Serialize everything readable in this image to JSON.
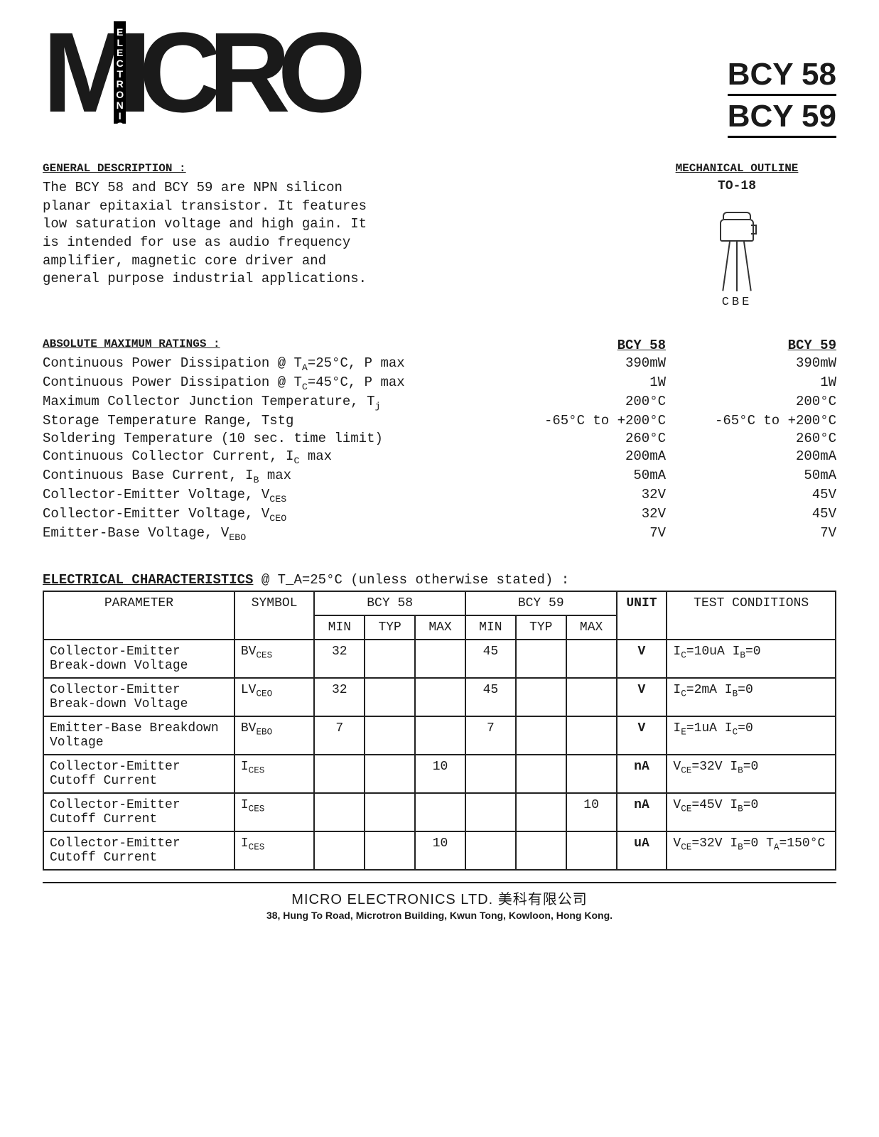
{
  "header": {
    "logo_main": "MICRO",
    "logo_sub": "ELECTRONICS",
    "part1": "BCY 58",
    "part2": "BCY 59"
  },
  "general": {
    "title": "GENERAL DESCRIPTION :",
    "text": "The BCY 58 and BCY 59 are NPN silicon planar epitaxial transistor. It features low saturation voltage and high gain.  It is intended for use as audio frequency amplifier, magnetic core driver and general purpose industrial applications."
  },
  "mechanical": {
    "title": "MECHANICAL OUTLINE",
    "package": "TO-18",
    "pins": "CBE"
  },
  "ratings": {
    "title": "ABSOLUTE MAXIMUM RATINGS   :",
    "col1": "BCY 58",
    "col2": "BCY 59",
    "rows": [
      {
        "label": "Continuous Power Dissipation @  T_A=25°C,  P max",
        "v1": "390mW",
        "v2": "390mW"
      },
      {
        "label": "Continuous Power Dissipation @  T_C=45°C,  P max",
        "v1": "1W",
        "v2": "1W"
      },
      {
        "label": "Maximum Collector Junction Temperature,  T_j",
        "v1": "200°C",
        "v2": "200°C"
      },
      {
        "label": "Storage Temperature Range,   Tstg",
        "v1": "-65°C to +200°C",
        "v2": "-65°C to +200°C"
      },
      {
        "label": "Soldering Temperature (10 sec. time limit)",
        "v1": "260°C",
        "v2": "260°C"
      },
      {
        "label": "Continuous Collector Current,  I_C  max",
        "v1": "200mA",
        "v2": "200mA"
      },
      {
        "label": "Continuous Base Current,  I_B  max",
        "v1": "50mA",
        "v2": "50mA"
      },
      {
        "label": "Collector-Emitter Voltage,  V_CES",
        "v1": "32V",
        "v2": "45V"
      },
      {
        "label": "Collector-Emitter Voltage,  V_CEO",
        "v1": "32V",
        "v2": "45V"
      },
      {
        "label": "Emitter-Base Voltage,  V_EBO",
        "v1": "7V",
        "v2": "7V"
      }
    ]
  },
  "electrical": {
    "title_u": "ELECTRICAL CHARACTERISTICS",
    "title_rest": "   @  T_A=25°C        (unless otherwise stated)   :",
    "headers": {
      "param": "PARAMETER",
      "symbol": "SYMBOL",
      "group1": "BCY 58",
      "group2": "BCY 59",
      "min": "MIN",
      "typ": "TYP",
      "max": "MAX",
      "unit": "UNIT",
      "cond": "TEST CONDITIONS"
    },
    "rows": [
      {
        "param": "Collector-Emitter Break-down Voltage",
        "sym": "BV_CES",
        "min1": "32",
        "typ1": "",
        "max1": "",
        "min2": "45",
        "typ2": "",
        "max2": "",
        "unit": "V",
        "cond": "I_C=10uA  I_B=0"
      },
      {
        "param": "Collector-Emitter Break-down Voltage",
        "sym": "LV_CEO",
        "min1": "32",
        "typ1": "",
        "max1": "",
        "min2": "45",
        "typ2": "",
        "max2": "",
        "unit": "V",
        "cond": "I_C=2mA   I_B=0"
      },
      {
        "param": "Emitter-Base Breakdown Voltage",
        "sym": "BV_EBO",
        "min1": "7",
        "typ1": "",
        "max1": "",
        "min2": "7",
        "typ2": "",
        "max2": "",
        "unit": "V",
        "cond": "I_E=1uA   I_C=0"
      },
      {
        "param": "Collector-Emitter Cutoff Current",
        "sym": "I_CES",
        "min1": "",
        "typ1": "",
        "max1": "10",
        "min2": "",
        "typ2": "",
        "max2": "",
        "unit": "nA",
        "cond": "V_CE=32V  I_B=0"
      },
      {
        "param": "Collector-Emitter Cutoff Current",
        "sym": "I_CES",
        "min1": "",
        "typ1": "",
        "max1": "",
        "min2": "",
        "typ2": "",
        "max2": "10",
        "unit": "nA",
        "cond": "V_CE=45V  I_B=0"
      },
      {
        "param": "Collector-Emitter Cutoff Current",
        "sym": "I_CES",
        "min1": "",
        "typ1": "",
        "max1": "10",
        "min2": "",
        "typ2": "",
        "max2": "",
        "unit": "uA",
        "cond": "V_CE=32V  I_B=0 T_A=150°C"
      }
    ]
  },
  "footer": {
    "company": "MICRO ELECTRONICS LTD.  美科有限公司",
    "address": "38, Hung To Road, Microtron Building, Kwun Tong, Kowloon, Hong Kong."
  }
}
